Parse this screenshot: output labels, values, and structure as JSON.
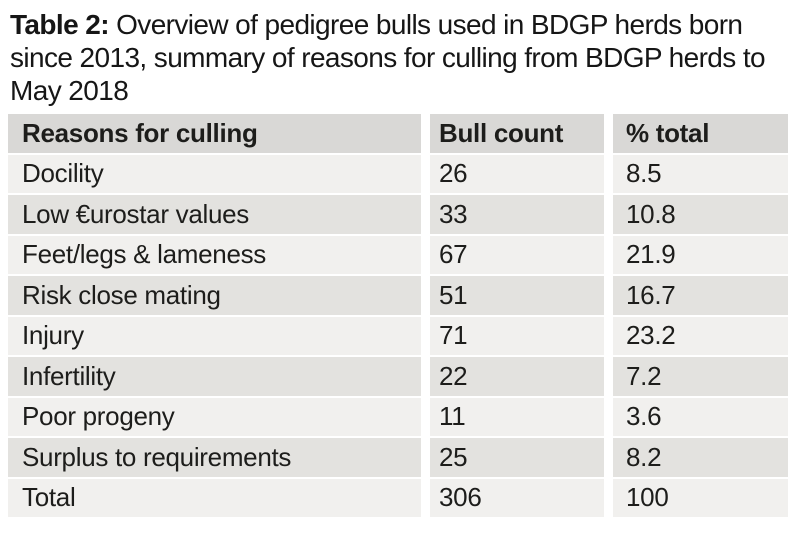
{
  "title": {
    "label": "Table 2:",
    "text": " Overview of pedigree bulls used in BDGP herds born since 2013, summary of reasons for culling from BDGP herds to May 2018"
  },
  "table": {
    "columns": [
      "Reasons for culling",
      "Bull count",
      "% total"
    ],
    "rows": [
      {
        "reason": "Docility",
        "bull_count": "26",
        "pct_total": "8.5"
      },
      {
        "reason": "Low €urostar values",
        "bull_count": "33",
        "pct_total": "10.8"
      },
      {
        "reason": "Feet/legs & lameness",
        "bull_count": "67",
        "pct_total": "21.9"
      },
      {
        "reason": "Risk close mating",
        "bull_count": "51",
        "pct_total": "16.7"
      },
      {
        "reason": "Injury",
        "bull_count": "71",
        "pct_total": "23.2"
      },
      {
        "reason": "Infertility",
        "bull_count": "22",
        "pct_total": "7.2"
      },
      {
        "reason": "Poor progeny",
        "bull_count": "11",
        "pct_total": "3.6"
      },
      {
        "reason": "Surplus to requirements",
        "bull_count": "25",
        "pct_total": "8.2"
      },
      {
        "reason": "Total",
        "bull_count": "306",
        "pct_total": "100"
      }
    ],
    "colors": {
      "header_bg": "#d9d8d6",
      "row_light": "#f1f0ee",
      "row_dark": "#e3e2df",
      "gap": "#ffffff",
      "text": "#1d1d1b"
    }
  }
}
